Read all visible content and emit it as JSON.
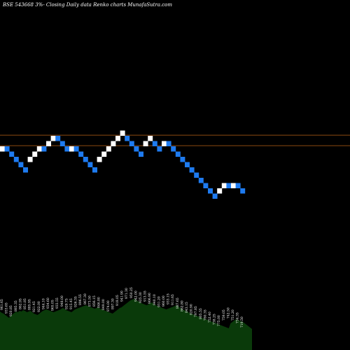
{
  "colors": {
    "background": "#000000",
    "up": "#ffffff",
    "down": "#1e7bf0",
    "reference_line": "#8b4a10",
    "volume": "#0a3a0a",
    "text": "#ffffff"
  },
  "chart_data": {
    "type": "renko",
    "title": "BSE 543668 3%-  Closing Daily data  Renko  charts MunafaSutra.com",
    "ylim": [
      0,
      2000
    ],
    "reference_lines": [
      1003,
      953
    ],
    "bricks": [
      {
        "dir": "up",
        "top": 950
      },
      {
        "dir": "down",
        "top": 950
      },
      {
        "dir": "down",
        "top": 925
      },
      {
        "dir": "down",
        "top": 900
      },
      {
        "dir": "down",
        "top": 875
      },
      {
        "dir": "down",
        "top": 850
      },
      {
        "dir": "up",
        "top": 900
      },
      {
        "dir": "up",
        "top": 925
      },
      {
        "dir": "up",
        "top": 950
      },
      {
        "dir": "down",
        "top": 950
      },
      {
        "dir": "up",
        "top": 975
      },
      {
        "dir": "up",
        "top": 1000
      },
      {
        "dir": "down",
        "top": 1000
      },
      {
        "dir": "down",
        "top": 975
      },
      {
        "dir": "down",
        "top": 950
      },
      {
        "dir": "up",
        "top": 950
      },
      {
        "dir": "down",
        "top": 950
      },
      {
        "dir": "down",
        "top": 925
      },
      {
        "dir": "down",
        "top": 900
      },
      {
        "dir": "down",
        "top": 875
      },
      {
        "dir": "down",
        "top": 850
      },
      {
        "dir": "up",
        "top": 900
      },
      {
        "dir": "up",
        "top": 925
      },
      {
        "dir": "up",
        "top": 950
      },
      {
        "dir": "up",
        "top": 975
      },
      {
        "dir": "up",
        "top": 1000
      },
      {
        "dir": "up",
        "top": 1025
      },
      {
        "dir": "down",
        "top": 1000
      },
      {
        "dir": "down",
        "top": 975
      },
      {
        "dir": "down",
        "top": 950
      },
      {
        "dir": "down",
        "top": 925
      },
      {
        "dir": "up",
        "top": 975
      },
      {
        "dir": "up",
        "top": 1000
      },
      {
        "dir": "down",
        "top": 975
      },
      {
        "dir": "down",
        "top": 950
      },
      {
        "dir": "up",
        "top": 975
      },
      {
        "dir": "down",
        "top": 975
      },
      {
        "dir": "down",
        "top": 950
      },
      {
        "dir": "down",
        "top": 925
      },
      {
        "dir": "down",
        "top": 900
      },
      {
        "dir": "down",
        "top": 875
      },
      {
        "dir": "down",
        "top": 850
      },
      {
        "dir": "down",
        "top": 825
      },
      {
        "dir": "down",
        "top": 800
      },
      {
        "dir": "down",
        "top": 775
      },
      {
        "dir": "down",
        "top": 750
      },
      {
        "dir": "down",
        "top": 725
      },
      {
        "dir": "up",
        "top": 750
      },
      {
        "dir": "up",
        "top": 775
      },
      {
        "dir": "down",
        "top": 775
      },
      {
        "dir": "up",
        "top": 775
      },
      {
        "dir": "down",
        "top": 775
      },
      {
        "dir": "down",
        "top": 750
      }
    ],
    "brick_labels": [
      "961.65",
      "933.65",
      "920.85",
      "885.35",
      "862.95",
      "851.85",
      "885.95",
      "921.45",
      "922.00",
      "944.10",
      "934.60",
      "965.05",
      "933.55",
      "948.00",
      "929.75",
      "915.45",
      "926.35",
      "896.55",
      "867.30",
      "873.50",
      "856.15",
      "846.80",
      "849.00",
      "874.00",
      "897.30",
      "918.05",
      "941.90",
      "971.30",
      "950.25",
      "942.00",
      "925.30",
      "913.55",
      "906.90",
      "940.10",
      "931.20",
      "960.00",
      "933.15",
      "911.65",
      "887.65",
      "862.80",
      "843.15",
      "820.90",
      "797.85",
      "805.55",
      "780.35",
      "752.40",
      "738.25",
      "775.00",
      "759.05",
      "742.50",
      "751.20",
      "734.35",
      "719.50"
    ],
    "volume": [
      55,
      53,
      52,
      50,
      48,
      46,
      49,
      51,
      53,
      55,
      54,
      56,
      55,
      57,
      56,
      54,
      55,
      56,
      54,
      52,
      51,
      50,
      52,
      54,
      56,
      57,
      58,
      57,
      56,
      55,
      54,
      55,
      56,
      57,
      58,
      60,
      59,
      57,
      56,
      55,
      54,
      56,
      58,
      59,
      60,
      61,
      62,
      63,
      64,
      63,
      62,
      61,
      60,
      59,
      60,
      61,
      59,
      58,
      57,
      56,
      55,
      54,
      53,
      52,
      54,
      56,
      58,
      60,
      61,
      63,
      65,
      67,
      69,
      71,
      72,
      73,
      72,
      70,
      69,
      67,
      66,
      65,
      64,
      65,
      67,
      68,
      66,
      64,
      63,
      62,
      61,
      60,
      59,
      58,
      59,
      60,
      61,
      62,
      63,
      64,
      62,
      60,
      58,
      57,
      56,
      55,
      53,
      52,
      51,
      50,
      49,
      48,
      47,
      46,
      45,
      44,
      43,
      42,
      41,
      40,
      39,
      38,
      37,
      36,
      35,
      34,
      33,
      32,
      31,
      38,
      40,
      42,
      44,
      43,
      42,
      41,
      40,
      38,
      36,
      34,
      32,
      30
    ]
  }
}
